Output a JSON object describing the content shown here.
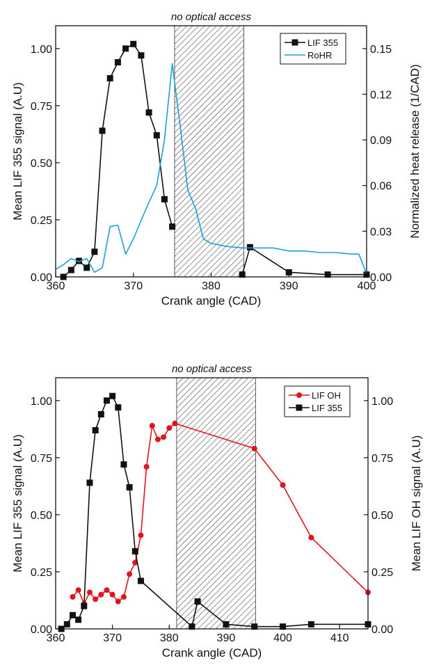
{
  "chart_data": [
    {
      "type": "line",
      "title": "",
      "annotation": "no optical access",
      "xlabel": "Crank angle (CAD)",
      "ylabel": "Mean LIF 355 signal (A.U)",
      "y2label": "Normalized heat release (1/CAD)",
      "xlim": [
        360,
        400
      ],
      "ylim": [
        0,
        1.1
      ],
      "y2lim": [
        0,
        0.165
      ],
      "xticks": [
        360,
        370,
        380,
        390,
        400
      ],
      "xtick_labels": [
        "360",
        "370",
        "380",
        "390",
        "400"
      ],
      "yticks": [
        0,
        0.25,
        0.5,
        0.75,
        1.0
      ],
      "ytick_labels": [
        "0.00",
        "0.25",
        "0.50",
        "0.75",
        "1.00"
      ],
      "y2ticks": [
        0,
        0.03,
        0.06,
        0.09,
        0.12,
        0.15
      ],
      "y2tick_labels": [
        "0.00",
        "0.03",
        "0.06",
        "0.09",
        "0.12",
        "0.15"
      ],
      "shaded_region": [
        375.3,
        384.2
      ],
      "legend_position": "top-right",
      "grid": false,
      "series": [
        {
          "name": "LIF 355",
          "axis": "left",
          "color": "#111111",
          "marker": "square",
          "x": [
            361,
            362,
            363,
            364,
            365,
            366,
            367,
            368,
            369,
            370,
            371,
            372,
            373,
            374,
            375,
            384,
            385,
            390,
            395,
            400
          ],
          "y": [
            0.0,
            0.03,
            0.07,
            0.04,
            0.11,
            0.64,
            0.87,
            0.94,
            1.0,
            1.02,
            0.97,
            0.72,
            0.62,
            0.34,
            0.22,
            0.01,
            0.13,
            0.02,
            0.01,
            0.01
          ],
          "segments": [
            [
              0,
              14
            ],
            [
              15,
              19
            ]
          ]
        },
        {
          "name": "RoHR",
          "axis": "right",
          "color": "#1aa0d8",
          "marker": "none",
          "x": [
            360,
            361,
            362,
            363,
            364,
            365,
            366,
            367,
            368,
            369,
            370,
            371,
            372,
            373,
            374,
            375,
            376,
            377,
            378,
            379,
            380,
            382,
            384,
            385,
            388,
            390,
            392,
            394,
            396,
            398,
            399,
            400
          ],
          "y": [
            0.005,
            0.008,
            0.012,
            0.01,
            0.012,
            0.003,
            0.006,
            0.033,
            0.034,
            0.015,
            0.025,
            0.037,
            0.049,
            0.06,
            0.09,
            0.14,
            0.1,
            0.057,
            0.045,
            0.025,
            0.022,
            0.02,
            0.019,
            0.019,
            0.019,
            0.017,
            0.017,
            0.016,
            0.016,
            0.015,
            0.015,
            0.002
          ]
        }
      ]
    },
    {
      "type": "line",
      "title": "",
      "annotation": "no optical access",
      "xlabel": "Crank angle (CAD)",
      "ylabel": "Mean LIF 355 signal (A.U)",
      "y2label": "Mean LIF OH signal (A.U)",
      "xlim": [
        360,
        415
      ],
      "ylim": [
        0,
        1.1
      ],
      "y2lim": [
        0,
        1.1
      ],
      "xticks": [
        360,
        370,
        380,
        390,
        400,
        410
      ],
      "xtick_labels": [
        "360",
        "370",
        "380",
        "390",
        "400",
        "410"
      ],
      "yticks": [
        0,
        0.25,
        0.5,
        0.75,
        1.0
      ],
      "ytick_labels": [
        "0.00",
        "0.25",
        "0.50",
        "0.75",
        "1.00"
      ],
      "y2ticks": [
        0,
        0.25,
        0.5,
        0.75,
        1.0
      ],
      "y2tick_labels": [
        "0.00",
        "0.25",
        "0.50",
        "0.75",
        "1.00"
      ],
      "shaded_region": [
        381.3,
        395.2
      ],
      "legend_position": "top-right",
      "grid": false,
      "series": [
        {
          "name": "LIF OH",
          "axis": "right",
          "color": "#e0141e",
          "marker": "circle",
          "x": [
            363,
            364,
            365,
            366,
            367,
            368,
            369,
            370,
            371,
            372,
            373,
            374,
            375,
            376,
            377,
            378,
            379,
            380,
            381,
            395,
            400,
            405,
            415
          ],
          "y": [
            0.14,
            0.17,
            0.11,
            0.16,
            0.13,
            0.15,
            0.17,
            0.15,
            0.12,
            0.14,
            0.24,
            0.29,
            0.41,
            0.71,
            0.89,
            0.83,
            0.84,
            0.88,
            0.9,
            0.79,
            0.63,
            0.4,
            0.16
          ]
        },
        {
          "name": "LIF 355",
          "axis": "left",
          "color": "#111111",
          "marker": "square",
          "x": [
            361,
            362,
            363,
            364,
            365,
            366,
            367,
            368,
            369,
            370,
            371,
            372,
            373,
            374,
            375,
            384,
            385,
            390,
            395,
            400,
            405,
            415
          ],
          "y": [
            0.0,
            0.02,
            0.06,
            0.04,
            0.1,
            0.64,
            0.87,
            0.94,
            1.0,
            1.02,
            0.97,
            0.72,
            0.62,
            0.34,
            0.21,
            0.01,
            0.12,
            0.02,
            0.01,
            0.01,
            0.02,
            0.02
          ],
          "segments": [
            [
              0,
              15
            ],
            [
              15,
              21
            ]
          ]
        }
      ]
    }
  ]
}
